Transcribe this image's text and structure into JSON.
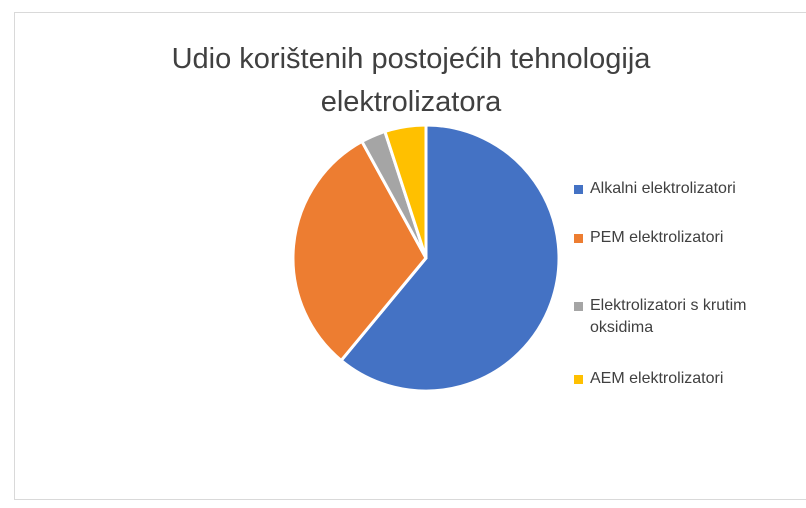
{
  "chart_data": {
    "type": "pie",
    "title": "Udio korištenih postojećih tehnologija elektrolizatora",
    "categories": [
      "Alkalni elektrolizatori",
      "PEM elektrolizatori",
      "Elektrolizatori s krutim oksidima",
      "AEM elektrolizatori"
    ],
    "values": [
      61,
      31,
      3,
      5
    ],
    "colors": [
      "#4472c4",
      "#ed7d31",
      "#a5a5a5",
      "#ffc000"
    ],
    "legend": "right"
  }
}
